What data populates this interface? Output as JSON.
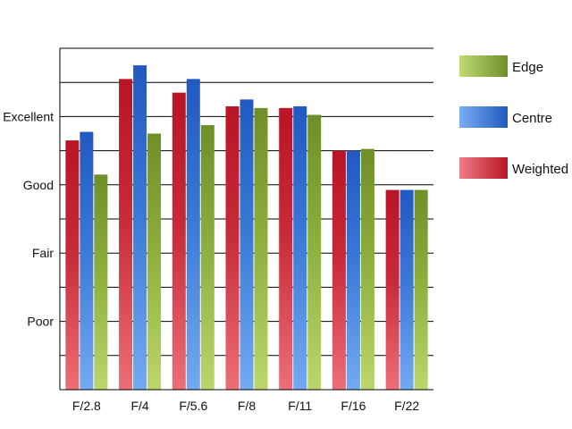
{
  "chart_data": {
    "type": "bar",
    "title": "",
    "xlabel": "",
    "ylabel": "",
    "categories": [
      "F/2.8",
      "F/4",
      "F/5.6",
      "F/8",
      "F/11",
      "F/16",
      "F/22"
    ],
    "ylim": [
      0,
      10
    ],
    "y_ticks": [
      {
        "value": 2,
        "label": "Poor"
      },
      {
        "value": 4,
        "label": "Fair"
      },
      {
        "value": 6,
        "label": "Good"
      },
      {
        "value": 8,
        "label": "Excellent"
      }
    ],
    "grid": true,
    "legend_position": "right",
    "series": [
      {
        "name": "Weighted",
        "color": "#c41e2c",
        "values": [
          7.3,
          9.1,
          8.7,
          8.3,
          8.25,
          7.0,
          5.85
        ]
      },
      {
        "name": "Centre",
        "color": "#2a66c8",
        "values": [
          7.55,
          9.5,
          9.1,
          8.5,
          8.3,
          7.0,
          5.85
        ]
      },
      {
        "name": "Edge",
        "color": "#7a9a30",
        "values": [
          6.3,
          7.5,
          7.75,
          8.25,
          8.05,
          7.05,
          5.85
        ]
      }
    ],
    "legend": [
      {
        "name": "Edge",
        "color": "#7a9a30"
      },
      {
        "name": "Centre",
        "color": "#2a66c8"
      },
      {
        "name": "Weighted",
        "color": "#c41e2c"
      }
    ]
  }
}
